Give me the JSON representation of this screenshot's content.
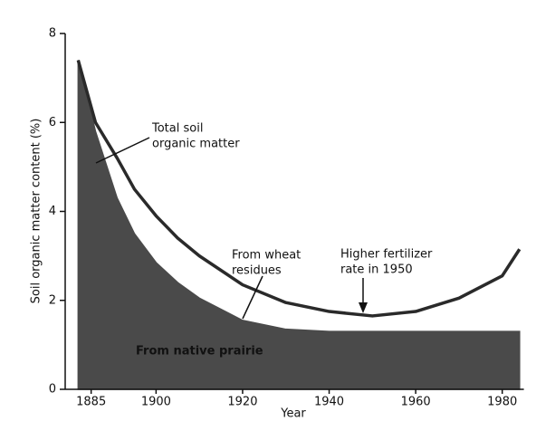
{
  "chart_data": {
    "type": "area",
    "x_label": "Year",
    "y_label": "Soil organic matter content (%)",
    "x": [
      1882,
      1886,
      1891,
      1895,
      1900,
      1905,
      1910,
      1920,
      1930,
      1940,
      1950,
      1960,
      1970,
      1980,
      1984
    ],
    "series": [
      {
        "values": [
          7.4,
          6.0,
          5.2,
          4.5,
          3.9,
          3.4,
          3.0,
          2.35,
          1.95,
          1.75,
          1.65,
          1.75,
          2.05,
          2.55,
          3.15
        ],
        "color": "#2a2a2a",
        "fill": false
      },
      {
        "values": [
          7.4,
          5.8,
          4.3,
          3.5,
          2.85,
          2.4,
          2.05,
          1.55,
          1.35,
          1.3,
          1.3,
          1.3,
          1.3,
          1.3,
          1.3
        ],
        "color": "#4a4a4a",
        "fill": true
      }
    ],
    "xlim": [
      1879,
      1985
    ],
    "ylim": [
      0,
      8
    ],
    "xticks": [
      1885,
      1900,
      1920,
      1940,
      1960,
      1980
    ],
    "yticks": [
      0,
      2,
      4,
      6,
      8
    ],
    "annotations": [
      {
        "lines": [
          "Total soil",
          "organic matter"
        ]
      },
      {
        "lines": [
          "From wheat",
          "residues"
        ]
      },
      {
        "lines": [
          "Higher fertilizer",
          "rate in 1950"
        ]
      },
      {
        "lines": [
          "From native prairie"
        ]
      }
    ]
  }
}
